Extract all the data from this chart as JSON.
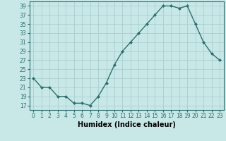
{
  "x": [
    0,
    1,
    2,
    3,
    4,
    5,
    6,
    7,
    8,
    9,
    10,
    11,
    12,
    13,
    14,
    15,
    16,
    17,
    18,
    19,
    20,
    21,
    22,
    23
  ],
  "y": [
    23,
    21,
    21,
    19,
    19,
    17.5,
    17.5,
    17,
    19,
    22,
    26,
    29,
    31,
    33,
    35,
    37,
    39,
    39,
    38.5,
    39,
    35,
    31,
    28.5,
    27
  ],
  "line_color": "#2d6e6e",
  "marker": "D",
  "marker_size": 2.0,
  "bg_color": "#c8e8e8",
  "grid_color": "#aacece",
  "xlabel": "Humidex (Indice chaleur)",
  "xlabel_fontsize": 7,
  "ytick_labels": [
    "17",
    "19",
    "21",
    "23",
    "25",
    "27",
    "29",
    "31",
    "33",
    "35",
    "37",
    "39"
  ],
  "ytick_vals": [
    17,
    19,
    21,
    23,
    25,
    27,
    29,
    31,
    33,
    35,
    37,
    39
  ],
  "xtick_vals": [
    0,
    1,
    2,
    3,
    4,
    5,
    6,
    7,
    8,
    9,
    10,
    11,
    12,
    13,
    14,
    15,
    16,
    17,
    18,
    19,
    20,
    21,
    22,
    23
  ],
  "ylim": [
    16.0,
    40.0
  ],
  "xlim": [
    -0.5,
    23.5
  ],
  "tick_fontsize": 5.5,
  "line_width": 1.0
}
